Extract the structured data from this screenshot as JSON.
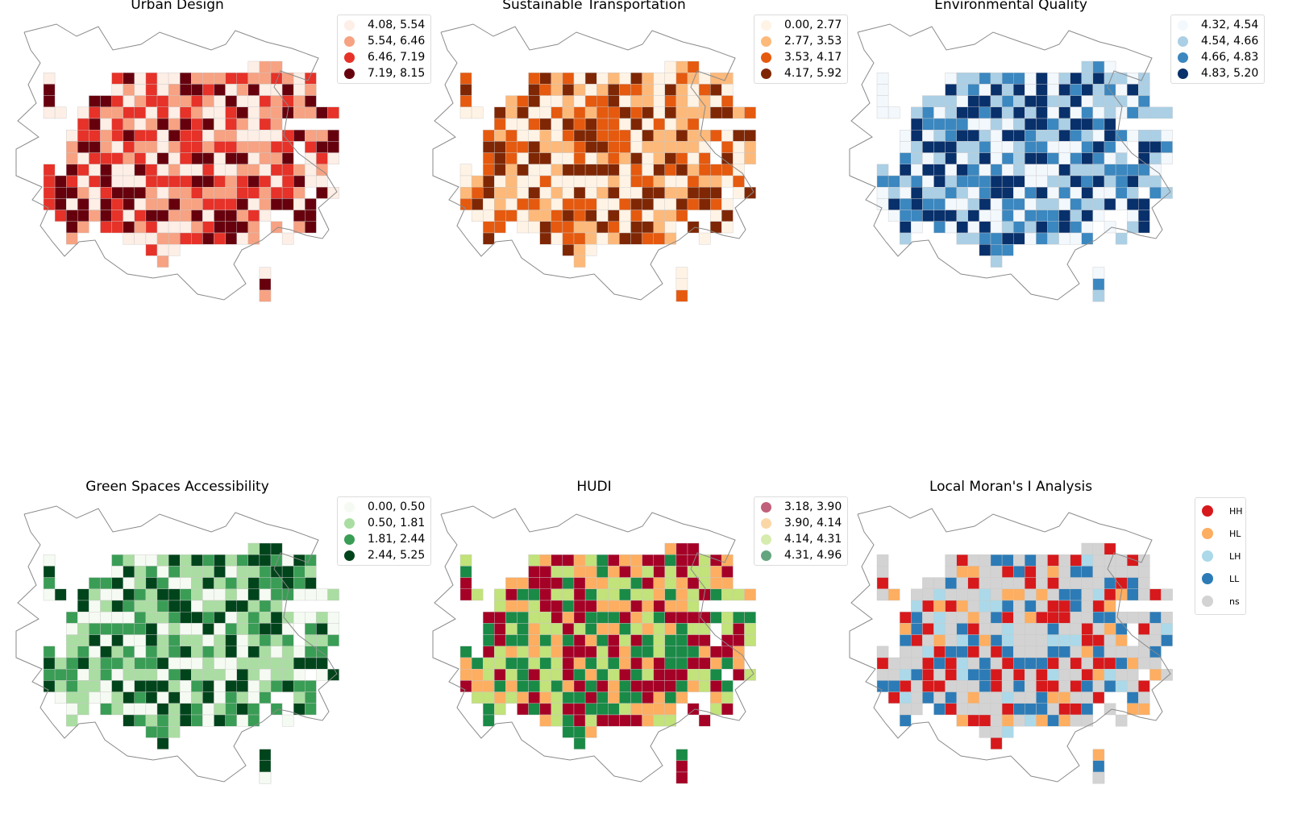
{
  "colors": {
    "outline": "#8a8a8a",
    "cell_stroke": "#c8c8c8"
  },
  "panels": [
    {
      "id": "urban-design",
      "title": "Urban Design",
      "palette": [
        "#fdeee6",
        "#f7a282",
        "#e63229",
        "#67000d"
      ],
      "legend": [
        "4.08, 5.54",
        "5.54, 6.46",
        "6.46, 7.19",
        "7.19, 8.15"
      ],
      "seed": 11
    },
    {
      "id": "sustainable-transportation",
      "title": "Sustainable Transportation",
      "palette": [
        "#fff3e5",
        "#fdb97a",
        "#e55a0f",
        "#7f2704"
      ],
      "legend": [
        "0.00, 2.77",
        "2.77, 3.53",
        "3.53, 4.17",
        "4.17, 5.92"
      ],
      "seed": 23
    },
    {
      "id": "environmental-quality",
      "title": "Environmental Quality",
      "palette": [
        "#f3f8fd",
        "#abcfe5",
        "#3b87c0",
        "#08306b"
      ],
      "legend": [
        "4.32, 4.54",
        "4.54, 4.66",
        "4.66, 4.83",
        "4.83, 5.20"
      ],
      "seed": 37
    },
    {
      "id": "green-spaces-accessibility",
      "title": "Green Spaces Accessibility",
      "palette": [
        "#f5fbf2",
        "#aadda2",
        "#3a9d55",
        "#00441b"
      ],
      "legend": [
        "0.00, 0.50",
        "0.50, 1.81",
        "1.81, 2.44",
        "2.44, 5.25"
      ],
      "seed": 41
    },
    {
      "id": "hudi",
      "title": "HUDI",
      "palette": [
        "#a50026",
        "#fdae61",
        "#c2e27a",
        "#1a8a47"
      ],
      "legend_palette": [
        "#c0607a",
        "#fbd7a8",
        "#d6ecae",
        "#64a57f"
      ],
      "legend": [
        "3.18, 3.90",
        "3.90, 4.14",
        "4.14, 4.31",
        "4.31, 4.96"
      ],
      "seed": 53
    },
    {
      "id": "local-morans-i-analysis",
      "title": "Local Moran's I Analysis",
      "palette": [
        "#d7191c",
        "#fdae61",
        "#abd9e9",
        "#2c7bb6",
        "#d3d3d3"
      ],
      "legend": [
        "HH",
        "HL",
        "LH",
        "LL",
        "ns"
      ],
      "categorical": true,
      "seed": 67
    }
  ]
}
